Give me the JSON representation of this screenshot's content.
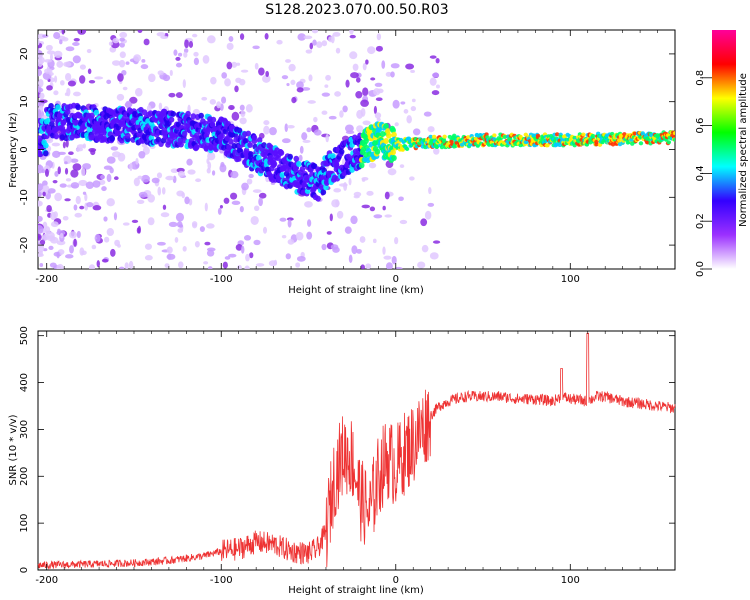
{
  "figure_title": "S128.2023.070.00.50.R03",
  "chart_data": [
    {
      "type": "heatmap",
      "xlabel": "Height of straight line (km)",
      "ylabel": "Frequency (Hz)",
      "xlim": [
        -205,
        160
      ],
      "ylim": [
        -25,
        25
      ],
      "x_ticks": [
        -200,
        -100,
        0,
        100
      ],
      "y_ticks": [
        -20,
        -10,
        0,
        10,
        20
      ],
      "colorbar": {
        "label": "Normalized spectral amplitude",
        "range": [
          0,
          1
        ],
        "ticks": [
          "0.0",
          "0.2",
          "0.4",
          "0.6",
          "0.8"
        ],
        "tick_values": [
          0,
          0.2,
          0.4,
          0.6,
          0.8
        ],
        "colors": [
          "#ffffff",
          "#9b30ff",
          "#3300ff",
          "#00ffff",
          "#00ff00",
          "#ffff00",
          "#ff0000",
          "#ff0099"
        ]
      },
      "ridge": {
        "description_points_x": [
          -200,
          -150,
          -120,
          -100,
          -80,
          -60,
          -45,
          -35,
          -25,
          -10,
          0,
          20,
          50,
          100,
          160
        ],
        "description_points_y": [
          6,
          5,
          4,
          3,
          -1,
          -5,
          -7,
          -3,
          -1,
          2,
          1,
          1.5,
          2,
          2,
          2.5
        ]
      },
      "grid": false
    },
    {
      "type": "line",
      "xlabel": "Height of straight line (km)",
      "ylabel": "SNR (10 * v/v)",
      "xlim": [
        -205,
        160
      ],
      "ylim": [
        0,
        510
      ],
      "x_ticks": [
        -200,
        -100,
        0,
        100
      ],
      "y_ticks": [
        0,
        100,
        200,
        300,
        400,
        500
      ],
      "series": [
        {
          "color": "#ee3333",
          "x": [
            -205,
            -180,
            -150,
            -130,
            -110,
            -100,
            -90,
            -80,
            -70,
            -60,
            -50,
            -45,
            -40,
            -35,
            -30,
            -25,
            -20,
            -15,
            -10,
            -5,
            0,
            5,
            10,
            15,
            20,
            25,
            30,
            40,
            50,
            60,
            70,
            80,
            90,
            95,
            100,
            110,
            115,
            120,
            130,
            140,
            150,
            160
          ],
          "y": [
            10,
            12,
            15,
            20,
            30,
            40,
            45,
            60,
            55,
            40,
            35,
            45,
            80,
            200,
            250,
            240,
            150,
            120,
            200,
            240,
            220,
            250,
            270,
            300,
            330,
            350,
            360,
            370,
            370,
            370,
            365,
            365,
            360,
            370,
            365,
            360,
            370,
            370,
            360,
            355,
            350,
            345
          ]
        }
      ],
      "spikes": [
        {
          "x": 95,
          "y": 430
        },
        {
          "x": 110,
          "y": 505
        }
      ],
      "grid": false
    }
  ]
}
